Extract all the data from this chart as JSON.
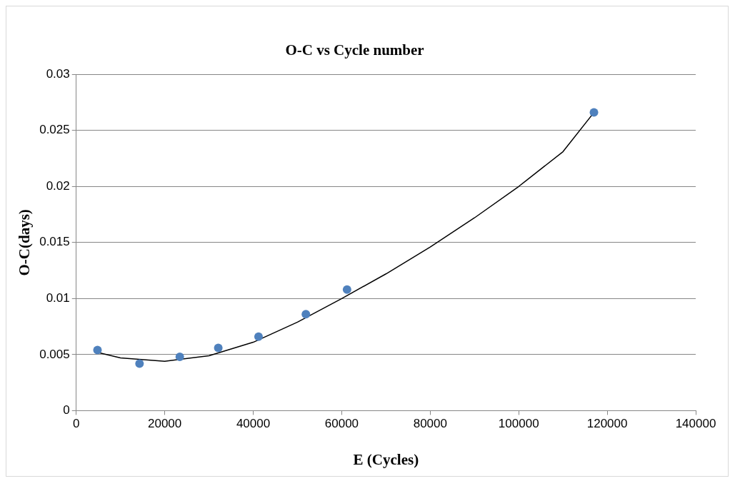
{
  "chart_data": {
    "type": "scatter",
    "title": "O-C vs Cycle number",
    "xlabel": "E (Cycles)",
    "ylabel": "O-C(days)",
    "xlim": [
      0,
      140000
    ],
    "xticks": [
      0,
      20000,
      40000,
      60000,
      80000,
      100000,
      120000,
      140000
    ],
    "ylim": [
      0,
      0.03
    ],
    "yticks": [
      0,
      0.005,
      0.01,
      0.015,
      0.02,
      0.025,
      0.03
    ],
    "grid": "y",
    "marker": "circle",
    "series": [
      {
        "color": "#4f81bd",
        "x": [
          4800,
          14300,
          23400,
          32100,
          41200,
          51900,
          61200,
          117000
        ],
        "values": [
          0.0054,
          0.0042,
          0.0048,
          0.0056,
          0.0066,
          0.0086,
          0.0108,
          0.0266
        ]
      },
      {
        "type": "line",
        "color": "#000000",
        "marker": "none",
        "x": [
          4800,
          10000,
          20000,
          30000,
          40000,
          50000,
          60000,
          70000,
          80000,
          90000,
          100000,
          110000,
          117000
        ],
        "values": [
          0.0052,
          0.0047,
          0.0044,
          0.0049,
          0.0061,
          0.0079,
          0.01,
          0.0122,
          0.0146,
          0.0172,
          0.02,
          0.0231,
          0.0266
        ]
      }
    ]
  }
}
